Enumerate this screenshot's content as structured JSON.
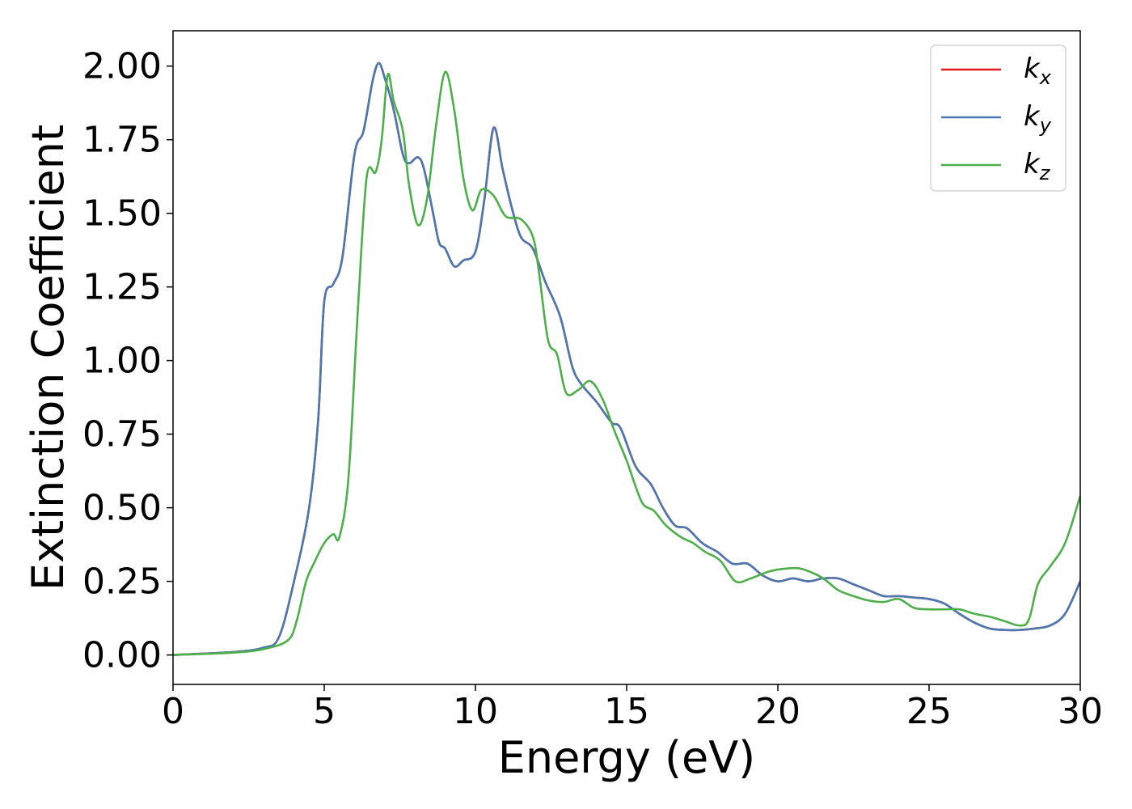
{
  "chart_data": {
    "type": "line",
    "title": "",
    "xlabel": "Energy (eV)",
    "ylabel": "Extinction Coefficient",
    "xlim": [
      0,
      30
    ],
    "ylim": [
      -0.1,
      2.12
    ],
    "x_ticks": [
      0,
      5,
      10,
      15,
      20,
      25,
      30
    ],
    "x_tick_labels": [
      "0",
      "5",
      "10",
      "15",
      "20",
      "25",
      "30"
    ],
    "y_ticks": [
      0.0,
      0.25,
      0.5,
      0.75,
      1.0,
      1.25,
      1.5,
      1.75,
      2.0
    ],
    "y_tick_labels": [
      "0.00",
      "0.25",
      "0.50",
      "0.75",
      "1.00",
      "1.25",
      "1.50",
      "1.75",
      "2.00"
    ],
    "grid": false,
    "legend_position": "top-right",
    "series": [
      {
        "name": "k_x",
        "label_base": "k",
        "label_sub": "x",
        "color": "#e41a1c",
        "points": [
          [
            0,
            0.0
          ],
          [
            2,
            0.01
          ],
          [
            3,
            0.025
          ],
          [
            3.5,
            0.06
          ],
          [
            4,
            0.25
          ],
          [
            4.5,
            0.5
          ],
          [
            4.8,
            0.8
          ],
          [
            5,
            1.2
          ],
          [
            5.3,
            1.26
          ],
          [
            5.6,
            1.35
          ],
          [
            6,
            1.7
          ],
          [
            6.3,
            1.78
          ],
          [
            6.6,
            1.95
          ],
          [
            6.8,
            2.01
          ],
          [
            7,
            1.96
          ],
          [
            7.3,
            1.85
          ],
          [
            7.6,
            1.7
          ],
          [
            7.8,
            1.67
          ],
          [
            8.1,
            1.69
          ],
          [
            8.3,
            1.65
          ],
          [
            8.6,
            1.5
          ],
          [
            8.8,
            1.4
          ],
          [
            9,
            1.38
          ],
          [
            9.3,
            1.32
          ],
          [
            9.6,
            1.34
          ],
          [
            10,
            1.37
          ],
          [
            10.3,
            1.55
          ],
          [
            10.6,
            1.79
          ],
          [
            10.9,
            1.65
          ],
          [
            11.2,
            1.52
          ],
          [
            11.5,
            1.42
          ],
          [
            11.9,
            1.38
          ],
          [
            12.3,
            1.27
          ],
          [
            12.8,
            1.15
          ],
          [
            13.2,
            0.98
          ],
          [
            13.5,
            0.92
          ],
          [
            14,
            0.86
          ],
          [
            14.5,
            0.79
          ],
          [
            14.8,
            0.77
          ],
          [
            15.3,
            0.64
          ],
          [
            15.8,
            0.58
          ],
          [
            16.2,
            0.5
          ],
          [
            16.6,
            0.44
          ],
          [
            17,
            0.43
          ],
          [
            17.5,
            0.38
          ],
          [
            18,
            0.35
          ],
          [
            18.5,
            0.31
          ],
          [
            19,
            0.31
          ],
          [
            19.5,
            0.27
          ],
          [
            20,
            0.25
          ],
          [
            20.5,
            0.26
          ],
          [
            21,
            0.25
          ],
          [
            21.5,
            0.26
          ],
          [
            22,
            0.26
          ],
          [
            22.5,
            0.24
          ],
          [
            23,
            0.22
          ],
          [
            23.5,
            0.2
          ],
          [
            24,
            0.2
          ],
          [
            24.5,
            0.195
          ],
          [
            25,
            0.19
          ],
          [
            25.5,
            0.175
          ],
          [
            26,
            0.14
          ],
          [
            26.5,
            0.11
          ],
          [
            27,
            0.09
          ],
          [
            27.5,
            0.085
          ],
          [
            28,
            0.085
          ],
          [
            28.5,
            0.09
          ],
          [
            29,
            0.1
          ],
          [
            29.5,
            0.14
          ],
          [
            30,
            0.25
          ]
        ]
      },
      {
        "name": "k_y",
        "label_base": "k",
        "label_sub": "y",
        "color": "#4a78b0",
        "points": [
          [
            0,
            0.0
          ],
          [
            2,
            0.01
          ],
          [
            3,
            0.025
          ],
          [
            3.5,
            0.06
          ],
          [
            4,
            0.25
          ],
          [
            4.5,
            0.5
          ],
          [
            4.8,
            0.8
          ],
          [
            5,
            1.2
          ],
          [
            5.3,
            1.26
          ],
          [
            5.6,
            1.35
          ],
          [
            6,
            1.7
          ],
          [
            6.3,
            1.78
          ],
          [
            6.6,
            1.95
          ],
          [
            6.8,
            2.01
          ],
          [
            7,
            1.96
          ],
          [
            7.3,
            1.85
          ],
          [
            7.6,
            1.7
          ],
          [
            7.8,
            1.67
          ],
          [
            8.1,
            1.69
          ],
          [
            8.3,
            1.65
          ],
          [
            8.6,
            1.5
          ],
          [
            8.8,
            1.4
          ],
          [
            9,
            1.38
          ],
          [
            9.3,
            1.32
          ],
          [
            9.6,
            1.34
          ],
          [
            10,
            1.37
          ],
          [
            10.3,
            1.55
          ],
          [
            10.6,
            1.79
          ],
          [
            10.9,
            1.65
          ],
          [
            11.2,
            1.52
          ],
          [
            11.5,
            1.42
          ],
          [
            11.9,
            1.38
          ],
          [
            12.3,
            1.27
          ],
          [
            12.8,
            1.15
          ],
          [
            13.2,
            0.98
          ],
          [
            13.5,
            0.92
          ],
          [
            14,
            0.86
          ],
          [
            14.5,
            0.79
          ],
          [
            14.8,
            0.77
          ],
          [
            15.3,
            0.64
          ],
          [
            15.8,
            0.58
          ],
          [
            16.2,
            0.5
          ],
          [
            16.6,
            0.44
          ],
          [
            17,
            0.43
          ],
          [
            17.5,
            0.38
          ],
          [
            18,
            0.35
          ],
          [
            18.5,
            0.31
          ],
          [
            19,
            0.31
          ],
          [
            19.5,
            0.27
          ],
          [
            20,
            0.25
          ],
          [
            20.5,
            0.26
          ],
          [
            21,
            0.25
          ],
          [
            21.5,
            0.26
          ],
          [
            22,
            0.26
          ],
          [
            22.5,
            0.24
          ],
          [
            23,
            0.22
          ],
          [
            23.5,
            0.2
          ],
          [
            24,
            0.2
          ],
          [
            24.5,
            0.195
          ],
          [
            25,
            0.19
          ],
          [
            25.5,
            0.175
          ],
          [
            26,
            0.14
          ],
          [
            26.5,
            0.11
          ],
          [
            27,
            0.09
          ],
          [
            27.5,
            0.085
          ],
          [
            28,
            0.085
          ],
          [
            28.5,
            0.09
          ],
          [
            29,
            0.1
          ],
          [
            29.5,
            0.14
          ],
          [
            30,
            0.25
          ]
        ]
      },
      {
        "name": "k_z",
        "label_base": "k",
        "label_sub": "z",
        "color": "#4daf4a",
        "points": [
          [
            0,
            0.0
          ],
          [
            2,
            0.008
          ],
          [
            3,
            0.02
          ],
          [
            3.8,
            0.05
          ],
          [
            4.1,
            0.12
          ],
          [
            4.4,
            0.25
          ],
          [
            4.7,
            0.32
          ],
          [
            5,
            0.38
          ],
          [
            5.3,
            0.41
          ],
          [
            5.5,
            0.4
          ],
          [
            5.8,
            0.6
          ],
          [
            6.1,
            1.15
          ],
          [
            6.4,
            1.62
          ],
          [
            6.7,
            1.64
          ],
          [
            6.9,
            1.75
          ],
          [
            7.1,
            1.97
          ],
          [
            7.3,
            1.88
          ],
          [
            7.6,
            1.78
          ],
          [
            7.8,
            1.6
          ],
          [
            8.1,
            1.46
          ],
          [
            8.4,
            1.55
          ],
          [
            8.7,
            1.8
          ],
          [
            9,
            1.98
          ],
          [
            9.3,
            1.85
          ],
          [
            9.6,
            1.62
          ],
          [
            9.9,
            1.51
          ],
          [
            10.2,
            1.58
          ],
          [
            10.6,
            1.56
          ],
          [
            11,
            1.49
          ],
          [
            11.5,
            1.48
          ],
          [
            11.9,
            1.42
          ],
          [
            12.1,
            1.3
          ],
          [
            12.4,
            1.07
          ],
          [
            12.7,
            1.02
          ],
          [
            13,
            0.89
          ],
          [
            13.4,
            0.9
          ],
          [
            13.8,
            0.93
          ],
          [
            14.2,
            0.87
          ],
          [
            14.6,
            0.76
          ],
          [
            15,
            0.66
          ],
          [
            15.5,
            0.52
          ],
          [
            15.9,
            0.49
          ],
          [
            16.3,
            0.44
          ],
          [
            16.8,
            0.4
          ],
          [
            17.2,
            0.38
          ],
          [
            17.6,
            0.35
          ],
          [
            18.1,
            0.32
          ],
          [
            18.6,
            0.25
          ],
          [
            19.1,
            0.26
          ],
          [
            19.6,
            0.28
          ],
          [
            20,
            0.29
          ],
          [
            20.6,
            0.295
          ],
          [
            21,
            0.285
          ],
          [
            21.5,
            0.26
          ],
          [
            22,
            0.22
          ],
          [
            22.5,
            0.2
          ],
          [
            23,
            0.185
          ],
          [
            23.5,
            0.18
          ],
          [
            24,
            0.19
          ],
          [
            24.5,
            0.16
          ],
          [
            25,
            0.155
          ],
          [
            25.5,
            0.155
          ],
          [
            26,
            0.155
          ],
          [
            26.5,
            0.14
          ],
          [
            27,
            0.13
          ],
          [
            27.5,
            0.115
          ],
          [
            28,
            0.1
          ],
          [
            28.3,
            0.12
          ],
          [
            28.6,
            0.24
          ],
          [
            29,
            0.3
          ],
          [
            29.5,
            0.38
          ],
          [
            30,
            0.54
          ]
        ]
      }
    ]
  }
}
